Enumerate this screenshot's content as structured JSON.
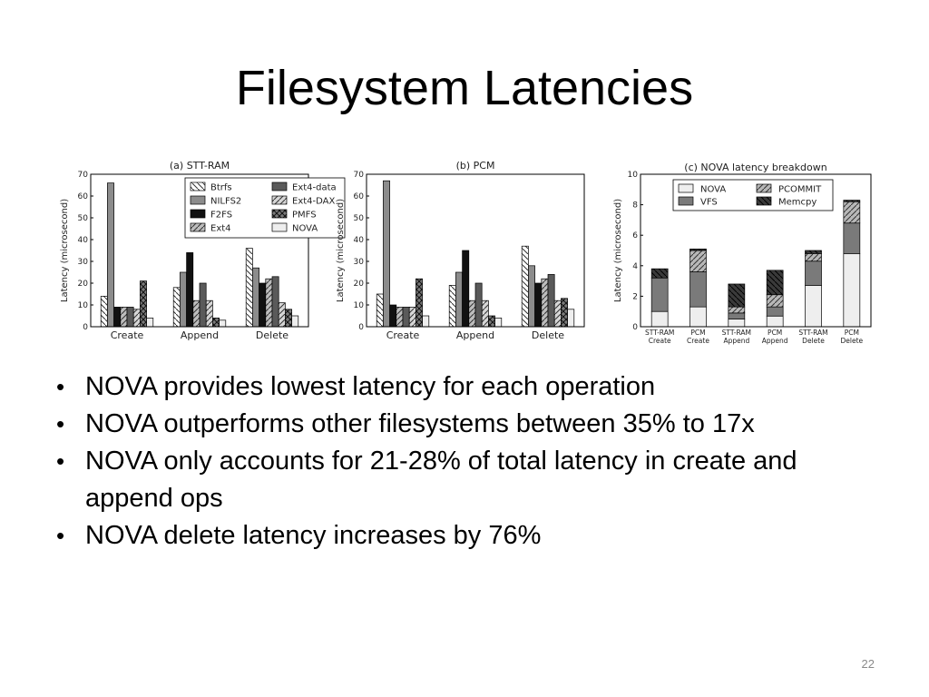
{
  "slide": {
    "title": "Filesystem Latencies",
    "page_number": "22",
    "bullets": [
      "NOVA provides lowest latency for each operation",
      "NOVA outperforms other filesystems between 35% to 17x",
      "NOVA only accounts for 21-28% of total latency in create and append ops",
      "NOVA delete latency increases by 76%"
    ]
  },
  "chart_data": [
    {
      "type": "bar",
      "title": "(a) STT-RAM",
      "ylabel": "Latency (microsecond)",
      "xlabel": "",
      "ylim": [
        0,
        70
      ],
      "yticks": [
        0,
        10,
        20,
        30,
        40,
        50,
        60,
        70
      ],
      "categories": [
        "Create",
        "Append",
        "Delete"
      ],
      "legend_position": "top-right",
      "series": [
        {
          "name": "Btrfs",
          "values": [
            14,
            18,
            36
          ]
        },
        {
          "name": "NILFS2",
          "values": [
            66,
            25,
            27
          ]
        },
        {
          "name": "F2FS",
          "values": [
            9,
            34,
            20
          ]
        },
        {
          "name": "Ext4",
          "values": [
            9,
            12,
            22
          ]
        },
        {
          "name": "Ext4-data",
          "values": [
            9,
            20,
            23
          ]
        },
        {
          "name": "Ext4-DAX",
          "values": [
            8,
            12,
            11
          ]
        },
        {
          "name": "PMFS",
          "values": [
            21,
            4,
            8
          ]
        },
        {
          "name": "NOVA",
          "values": [
            4,
            3,
            5
          ]
        }
      ]
    },
    {
      "type": "bar",
      "title": "(b) PCM",
      "ylabel": "Latency (microsecond)",
      "xlabel": "",
      "ylim": [
        0,
        70
      ],
      "yticks": [
        0,
        10,
        20,
        30,
        40,
        50,
        60,
        70
      ],
      "categories": [
        "Create",
        "Append",
        "Delete"
      ],
      "legend_position": "none",
      "series": [
        {
          "name": "Btrfs",
          "values": [
            15,
            19,
            37
          ]
        },
        {
          "name": "NILFS2",
          "values": [
            67,
            25,
            28
          ]
        },
        {
          "name": "F2FS",
          "values": [
            10,
            35,
            20
          ]
        },
        {
          "name": "Ext4",
          "values": [
            9,
            12,
            22
          ]
        },
        {
          "name": "Ext4-data",
          "values": [
            9,
            20,
            24
          ]
        },
        {
          "name": "Ext4-DAX",
          "values": [
            9,
            12,
            12
          ]
        },
        {
          "name": "PMFS",
          "values": [
            22,
            5,
            13
          ]
        },
        {
          "name": "NOVA",
          "values": [
            5,
            4,
            8
          ]
        }
      ]
    },
    {
      "type": "bar",
      "stacked": true,
      "title": "(c) NOVA latency breakdown",
      "ylabel": "Latency (microsecond)",
      "xlabel": "",
      "ylim": [
        0,
        10
      ],
      "yticks": [
        0,
        2,
        4,
        6,
        8,
        10
      ],
      "categories": [
        "STT-RAM Create",
        "PCM Create",
        "STT-RAM Append",
        "PCM Append",
        "STT-RAM Delete",
        "PCM Delete"
      ],
      "legend_position": "top",
      "series": [
        {
          "name": "NOVA",
          "values": [
            1.0,
            1.3,
            0.5,
            0.7,
            2.7,
            4.8
          ]
        },
        {
          "name": "VFS",
          "values": [
            2.2,
            2.3,
            0.4,
            0.6,
            1.6,
            2.0
          ]
        },
        {
          "name": "PCOMMIT",
          "values": [
            0.0,
            1.4,
            0.4,
            0.8,
            0.5,
            1.4
          ]
        },
        {
          "name": "Memcpy",
          "values": [
            0.6,
            0.1,
            1.5,
            1.6,
            0.2,
            0.1
          ]
        }
      ]
    }
  ],
  "colors": {
    "Btrfs": "#ffffff",
    "NILFS2": "#8c8c8c",
    "F2FS": "#111111",
    "Ext4": "#bdbdbd",
    "Ext4-data": "#5a5a5a",
    "Ext4-DAX": "#d6d6d6",
    "PMFS": "#777777",
    "NOVA": "#eeeeee",
    "VFS": "#7a7a7a",
    "PCOMMIT": "#b8b8b8",
    "Memcpy": "#3a3a3a"
  }
}
